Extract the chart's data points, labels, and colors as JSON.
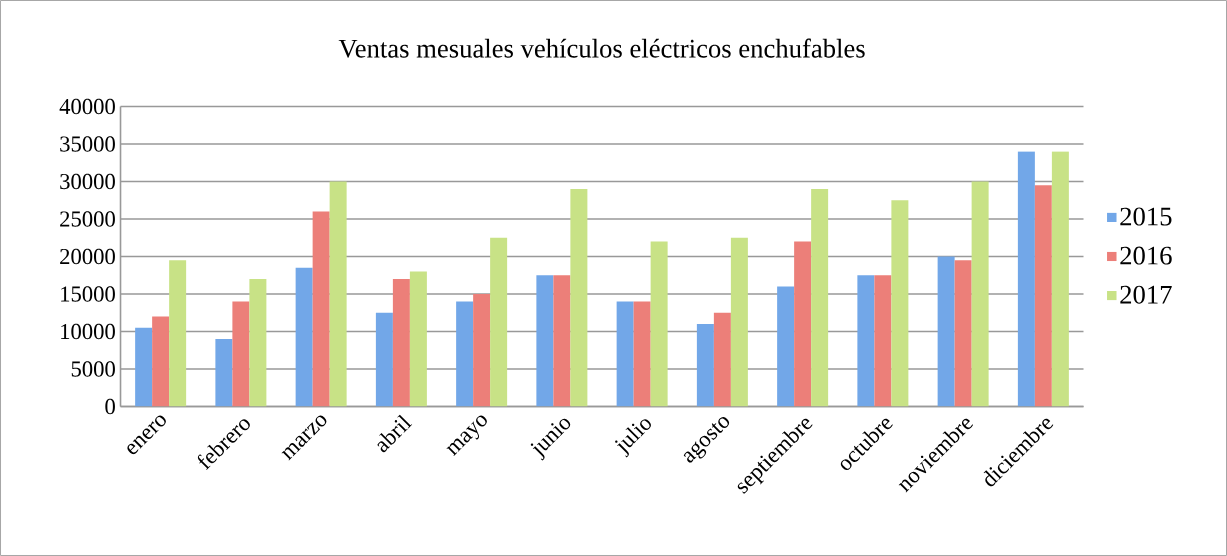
{
  "chart_data": {
    "type": "bar",
    "title": "Ventas mesuales vehículos eléctricos enchufables",
    "categories": [
      "enero",
      "febrero",
      "marzo",
      "abril",
      "mayo",
      "junio",
      "julio",
      "agosto",
      "septiembre",
      "octubre",
      "noviembre",
      "diciembre"
    ],
    "series": [
      {
        "name": "2015",
        "color": "#72a7e8",
        "values": [
          10500,
          9000,
          18500,
          12500,
          14000,
          17500,
          14000,
          11000,
          16000,
          17500,
          20000,
          34000
        ]
      },
      {
        "name": "2016",
        "color": "#ec7f79",
        "values": [
          12000,
          14000,
          26000,
          17000,
          15000,
          17500,
          14000,
          12500,
          22000,
          17500,
          19500,
          29500
        ]
      },
      {
        "name": "2017",
        "color": "#c8e286",
        "values": [
          19500,
          17000,
          30000,
          18000,
          22500,
          29000,
          22000,
          22500,
          29000,
          27500,
          30000,
          34000
        ]
      }
    ],
    "ylim": [
      0,
      40000
    ],
    "yticks": [
      0,
      5000,
      10000,
      15000,
      20000,
      25000,
      30000,
      35000,
      40000
    ],
    "grid": "y",
    "legend": "right"
  }
}
